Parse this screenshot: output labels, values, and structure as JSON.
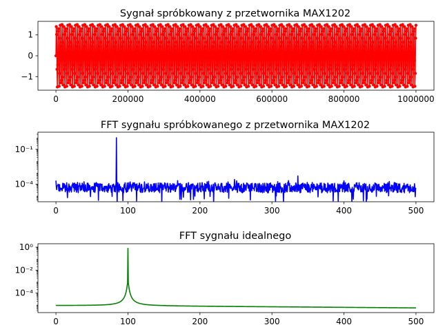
{
  "chart_data": [
    {
      "type": "line",
      "title": "Sygnał spróbkowany z przetwornika MAX1202",
      "xlabel": "",
      "ylabel": "",
      "xlim": [
        -50000,
        1050000
      ],
      "ylim": [
        -1.65,
        1.65
      ],
      "xticks": [
        0,
        200000,
        400000,
        600000,
        800000,
        1000000
      ],
      "xtick_labels": [
        "0",
        "200000",
        "400000",
        "600000",
        "800000",
        "1000000"
      ],
      "yticks": [
        -1,
        0,
        1
      ],
      "ytick_labels": [
        "−1",
        "0",
        "1"
      ],
      "grid": false,
      "series": [
        {
          "name": "",
          "color": "#ff0000",
          "marker": "dot",
          "signal": {
            "amplitude": 1.5,
            "frequency_hz": 100,
            "sample_rate_hz": 84,
            "samples": 1000
          },
          "x_range": [
            0,
            1000000
          ]
        }
      ]
    },
    {
      "type": "line",
      "title": "FFT sygnału spróbkowanego z przetwornika MAX1202",
      "xlabel": "",
      "ylabel": "",
      "xlim": [
        -25,
        525
      ],
      "yscale": "log",
      "ylim": [
        3e-06,
        3
      ],
      "xticks": [
        0,
        100,
        200,
        300,
        400,
        500
      ],
      "xtick_labels": [
        "0",
        "100",
        "200",
        "300",
        "400",
        "500"
      ],
      "yticks": [
        0.1,
        0.0001
      ],
      "ytick_labels": [
        "10⁻¹",
        "10⁻⁴"
      ],
      "grid": false,
      "series": [
        {
          "name": "",
          "color": "#0000ff",
          "x_range": [
            0,
            500
          ],
          "noise_floor": 5e-05,
          "peaks": [
            {
              "x": 0,
              "y": 0.0002
            },
            {
              "x": 84,
              "y": 1.0
            },
            {
              "x": 336,
              "y": 0.0005
            },
            {
              "x": 172,
              "y": 5e-06
            },
            {
              "x": 240,
              "y": 6e-06
            },
            {
              "x": 248,
              "y": 0.00025
            },
            {
              "x": 323,
              "y": 0.0002
            }
          ]
        }
      ]
    },
    {
      "type": "line",
      "title": "FFT sygnału idealnego",
      "xlabel": "",
      "ylabel": "",
      "xlim": [
        -25,
        525
      ],
      "yscale": "log",
      "ylim": [
        2e-06,
        2
      ],
      "xticks": [
        0,
        100,
        200,
        300,
        400,
        500
      ],
      "xtick_labels": [
        "0",
        "100",
        "200",
        "300",
        "400",
        "500"
      ],
      "yticks": [
        1,
        0.01,
        0.0001
      ],
      "ytick_labels": [
        "10⁰",
        "10⁻²",
        "10⁻⁴"
      ],
      "grid": false,
      "series": [
        {
          "name": "",
          "color": "#008000",
          "x_range": [
            0,
            500
          ],
          "peak_x": 100,
          "peak_y": 0.8,
          "floor_start": 8e-06,
          "floor_end": 5e-06
        }
      ]
    }
  ]
}
